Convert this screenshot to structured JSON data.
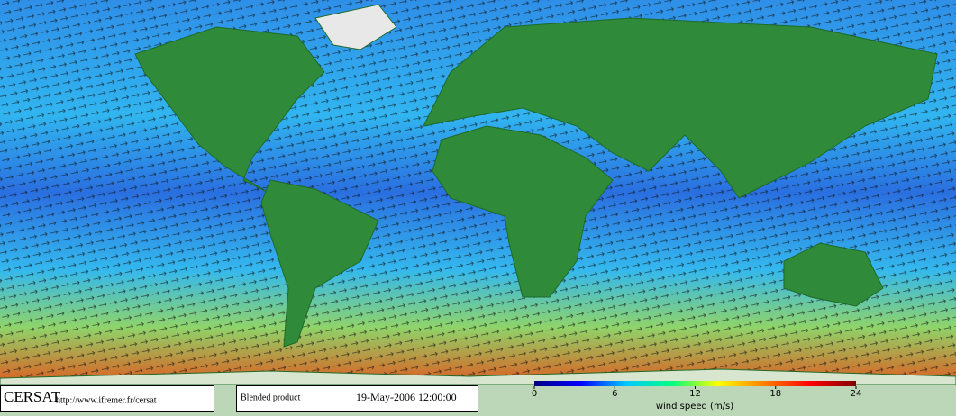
{
  "footer": {
    "logo": "CERSAT",
    "url": "http://www.ifremer.fr/cersat",
    "product": "Blended product",
    "date": "19-May-2006 12:00:00"
  },
  "colorbar": {
    "label": "wind speed (m/s)",
    "range": [
      0,
      24
    ],
    "ticks": [
      0,
      6,
      12,
      18,
      24
    ],
    "colors": [
      "#000080",
      "#0000ff",
      "#00c8ff",
      "#00ff80",
      "#ffff00",
      "#ff8000",
      "#ff0000",
      "#800000"
    ]
  }
}
